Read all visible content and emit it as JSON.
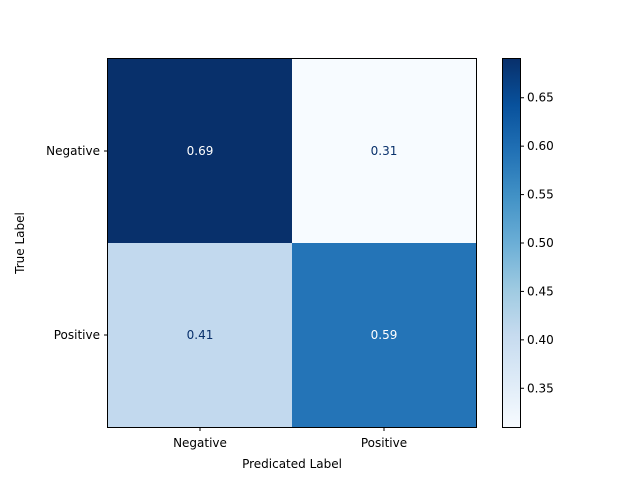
{
  "chart_data": {
    "type": "heatmap",
    "title": "",
    "xlabel": "Predicated Label",
    "ylabel": "True Label",
    "x_categories": [
      "Negative",
      "Positive"
    ],
    "y_categories": [
      "Negative",
      "Positive"
    ],
    "values": [
      [
        0.69,
        0.31
      ],
      [
        0.41,
        0.59
      ]
    ],
    "colorbar": {
      "min": 0.31,
      "max": 0.69,
      "ticks": [
        "0.35",
        "0.40",
        "0.45",
        "0.50",
        "0.55",
        "0.60",
        "0.65"
      ],
      "colormap": "Blues"
    },
    "colors": {
      "low": "#f7fbff",
      "high": "#08306b",
      "text_on_dark": "#ffffff",
      "text_on_light": "#08306b"
    }
  }
}
